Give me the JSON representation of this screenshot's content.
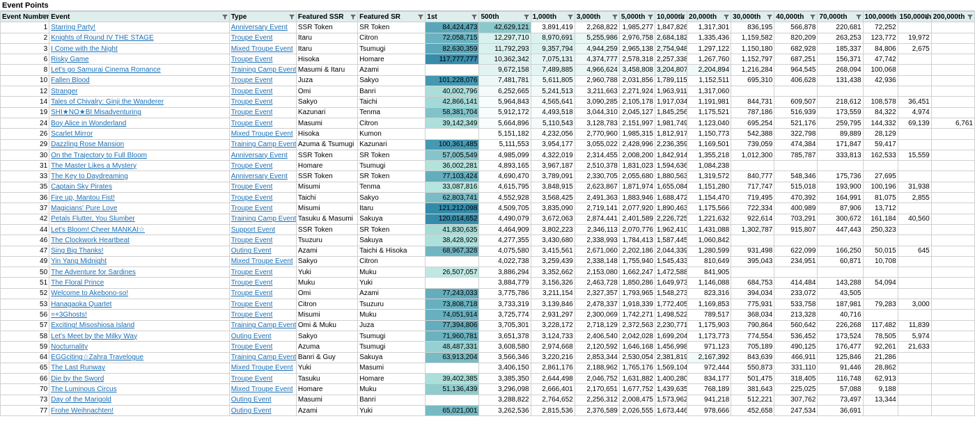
{
  "sheet_title": "Event Points",
  "columns": [
    "Event Number",
    "Event",
    "Type",
    "Featured SSR",
    "Featured SR",
    "1st",
    "500th",
    "1,000th",
    "3,000th",
    "5,000th",
    "10,000th",
    "20,000th",
    "30,000th",
    "40,000th",
    "70,000th",
    "100,000th",
    "150,000th",
    "200,000th"
  ],
  "col_widths": [
    70,
    258,
    96,
    88,
    97,
    77,
    74,
    63,
    64,
    51,
    46,
    63,
    62,
    62,
    65,
    50,
    48,
    62
  ],
  "min_log": 6.8,
  "max_log": 8.1,
  "rows": [
    [
      "1",
      "Starring Party!",
      "Anniversary Event",
      "SSR Token",
      "SR Token",
      "84,424,473",
      "42,629,121",
      "3,891,419",
      "2,268,822",
      "1,985,277",
      "1,847,826",
      "1,317,301",
      "836,195",
      "566,878",
      "220,681",
      "72,252",
      "",
      ""
    ],
    [
      "2",
      "Knights of Round IV THE STAGE",
      "Troupe Event",
      "Itaru",
      "Citron",
      "72,058,715",
      "12,297,710",
      "8,970,691",
      "5,255,986",
      "2,976,758",
      "2,684,182",
      "1,335,436",
      "1,159,582",
      "820,209",
      "263,253",
      "123,772",
      "19,972",
      ""
    ],
    [
      "3",
      "I Come with the Night",
      "Mixed Troupe Event",
      "Itaru",
      "Tsumugi",
      "82,630,359",
      "11,792,293",
      "9,357,794",
      "4,944,259",
      "2,965,138",
      "2,754,948",
      "1,297,122",
      "1,150,180",
      "682,928",
      "185,337",
      "84,806",
      "2,675",
      ""
    ],
    [
      "6",
      "Risky Game",
      "Troupe Event",
      "Hisoka",
      "Homare",
      "117,777,777",
      "10,362,342",
      "7,075,131",
      "4,374,777",
      "2,578,318",
      "2,257,338",
      "1,267,760",
      "1,152,797",
      "687,251",
      "156,371",
      "47,742",
      "",
      ""
    ],
    [
      "8",
      "Let's go Samurai Cinema Romance",
      "Training Camp Event",
      "Masumi & Itaru",
      "Azami",
      "",
      "9,672,158",
      "7,489,885",
      "4,966,624",
      "3,458,808",
      "3,204,807",
      "2,204,894",
      "1,216,284",
      "964,545",
      "268,094",
      "100,068",
      "",
      ""
    ],
    [
      "10",
      "Fallen Blood",
      "Troupe Event",
      "Juza",
      "Sakyo",
      "101,228,076",
      "7,481,781",
      "5,611,805",
      "2,960,788",
      "2,031,856",
      "1,789,115",
      "1,152,511",
      "695,310",
      "406,628",
      "131,438",
      "42,936",
      "",
      ""
    ],
    [
      "12",
      "Stranger",
      "Troupe Event",
      "Omi",
      "Banri",
      "40,002,796",
      "6,252,665",
      "5,241,513",
      "3,211,663",
      "2,271,924",
      "1,963,911",
      "1,317,060",
      "",
      "",
      "",
      "",
      "",
      ""
    ],
    [
      "14",
      "Tales of Chivalry: Ginji the Wanderer",
      "Troupe Event",
      "Sakyo",
      "Taichi",
      "42,866,141",
      "5,964,843",
      "4,565,641",
      "3,090,285",
      "2,105,178",
      "1,917,034",
      "1,191,981",
      "844,731",
      "609,507",
      "218,612",
      "108,578",
      "36,451",
      ""
    ],
    [
      "19",
      "SHI★NO★BI Misadventuring",
      "Troupe Event",
      "Kazunari",
      "Tenma",
      "58,381,704",
      "5,912,172",
      "4,493,518",
      "3,044,310",
      "2,045,127",
      "1,845,256",
      "1,175,521",
      "787,186",
      "516,939",
      "173,559",
      "84,322",
      "4,974",
      ""
    ],
    [
      "24",
      "Boy Alice in Wonderland",
      "Troupe Event",
      "Masumi",
      "Citron",
      "39,142,349",
      "5,664,896",
      "5,110,543",
      "3,128,783",
      "2,151,997",
      "1,981,749",
      "1,123,040",
      "695,254",
      "521,176",
      "259,795",
      "144,332",
      "69,139",
      "6,761"
    ],
    [
      "26",
      "Scarlet Mirror",
      "Mixed Troupe Event",
      "Hisoka",
      "Kumon",
      "",
      "5,151,182",
      "4,232,056",
      "2,770,960",
      "1,985,315",
      "1,812,917",
      "1,150,773",
      "542,388",
      "322,798",
      "89,889",
      "28,129",
      "",
      ""
    ],
    [
      "29",
      "Dazzling Rose Mansion",
      "Training Camp Event",
      "Azuma & Tsumugi",
      "Kazunari",
      "100,361,485",
      "5,111,553",
      "3,954,177",
      "3,055,022",
      "2,428,996",
      "2,236,359",
      "1,169,501",
      "739,059",
      "474,384",
      "171,847",
      "59,417",
      "",
      ""
    ],
    [
      "30",
      "On the Trajectory to Full Bloom",
      "Anniversary Event",
      "SSR Token",
      "SR Token",
      "57,005,549",
      "4,985,099",
      "4,322,019",
      "2,314,455",
      "2,008,200",
      "1,842,914",
      "1,355,218",
      "1,012,300",
      "785,787",
      "333,813",
      "162,533",
      "15,559",
      ""
    ],
    [
      "31",
      "The Master Likes a Mystery",
      "Troupe Event",
      "Homare",
      "Tsumugi",
      "36,002,281",
      "4,893,165",
      "3,967,187",
      "2,510,378",
      "1,831,023",
      "1,594,636",
      "1,084,238",
      "",
      "",
      "",
      "",
      "",
      ""
    ],
    [
      "33",
      "The Key to Daydreaming",
      "Anniversary Event",
      "SSR Token",
      "SR Token",
      "77,103,424",
      "4,690,470",
      "3,789,091",
      "2,330,705",
      "2,055,680",
      "1,880,563",
      "1,319,572",
      "840,777",
      "548,346",
      "175,736",
      "27,695",
      "",
      ""
    ],
    [
      "35",
      "Captain Sky Pirates",
      "Troupe Event",
      "Misumi",
      "Tenma",
      "33,087,816",
      "4,615,795",
      "3,848,915",
      "2,623,867",
      "1,871,974",
      "1,655,084",
      "1,151,280",
      "717,747",
      "515,018",
      "193,900",
      "100,196",
      "31,938",
      ""
    ],
    [
      "36",
      "Fire up, Mantou Fist!",
      "Troupe Event",
      "Taichi",
      "Sakyo",
      "62,803,741",
      "4,552,928",
      "3,568,425",
      "2,491,363",
      "1,883,946",
      "1,688,472",
      "1,154,470",
      "719,495",
      "470,392",
      "164,991",
      "81,075",
      "2,855",
      ""
    ],
    [
      "37",
      "Magicians' Pure Love",
      "Troupe Event",
      "Misumi",
      "Itaru",
      "121,212,098",
      "4,509,705",
      "3,835,090",
      "2,719,141",
      "2,077,920",
      "1,890,463",
      "1,175,566",
      "722,334",
      "400,989",
      "87,906",
      "13,712",
      "",
      ""
    ],
    [
      "42",
      "Petals Flutter, You Slumber",
      "Training Camp Event",
      "Tasuku & Masumi",
      "Sakuya",
      "120,014,652",
      "4,490,079",
      "3,672,063",
      "2,874,441",
      "2,401,589",
      "2,226,725",
      "1,221,632",
      "922,614",
      "703,291",
      "300,672",
      "161,184",
      "40,560",
      ""
    ],
    [
      "44",
      "Let's Bloom! Cheer MANKAI☆",
      "Support Event",
      "SSR Token",
      "SR Token",
      "41,830,635",
      "4,464,909",
      "3,802,223",
      "2,346,113",
      "2,070,776",
      "1,962,410",
      "1,431,088",
      "1,302,787",
      "915,807",
      "447,443",
      "250,323",
      "",
      ""
    ],
    [
      "46",
      "The Clockwork Heartbeat",
      "Troupe Event",
      "Tsuzuru",
      "Sakuya",
      "38,428,929",
      "4,277,355",
      "3,430,680",
      "2,338,993",
      "1,784,413",
      "1,587,445",
      "1,060,842",
      "",
      "",
      "",
      "",
      "",
      ""
    ],
    [
      "47",
      "Sing Big Thanks!",
      "Outing Event",
      "Azami",
      "Taichi & Hisoka",
      "68,967,328",
      "4,075,580",
      "3,415,561",
      "2,671,060",
      "2,202,186",
      "2,044,339",
      "1,280,599",
      "931,498",
      "622,099",
      "166,250",
      "50,015",
      "645",
      ""
    ],
    [
      "49",
      "Yin Yang Midnight",
      "Mixed Troupe Event",
      "Sakyo",
      "Citron",
      "",
      "4,022,738",
      "3,259,439",
      "2,338,148",
      "1,755,940",
      "1,545,433",
      "810,649",
      "395,043",
      "234,951",
      "60,871",
      "10,708",
      "",
      ""
    ],
    [
      "50",
      "The Adventure for Sardines",
      "Troupe Event",
      "Yuki",
      "Muku",
      "26,507,057",
      "3,886,294",
      "3,352,662",
      "2,153,080",
      "1,662,247",
      "1,472,588",
      "841,905",
      "",
      "",
      "",
      "",
      "",
      ""
    ],
    [
      "51",
      "The Floral Prince",
      "Troupe Event",
      "Muku",
      "Yuki",
      "",
      "3,884,779",
      "3,156,326",
      "2,463,728",
      "1,850,286",
      "1,649,973",
      "1,146,088",
      "684,753",
      "414,484",
      "143,288",
      "54,094",
      "",
      ""
    ],
    [
      "52",
      "Welcome to Akebono-so!",
      "Troupe Event",
      "Omi",
      "Azami",
      "77,243,033",
      "3,775,786",
      "3,211,154",
      "2,327,357",
      "1,793,965",
      "1,548,273",
      "823,316",
      "394,034",
      "233,072",
      "43,505",
      "",
      "",
      ""
    ],
    [
      "53",
      "Hanagaoka Quartet",
      "Troupe Event",
      "Citron",
      "Tsuzuru",
      "73,808,718",
      "3,733,319",
      "3,139,846",
      "2,478,337",
      "1,918,339",
      "1,772,405",
      "1,169,853",
      "775,931",
      "533,758",
      "187,981",
      "79,283",
      "3,000",
      ""
    ],
    [
      "56",
      "=+3Ghosts!",
      "Troupe Event",
      "Misumi",
      "Muku",
      "74,051,914",
      "3,725,774",
      "2,931,297",
      "2,300,069",
      "1,742,271",
      "1,498,522",
      "789,517",
      "368,034",
      "213,328",
      "40,716",
      "",
      "",
      ""
    ],
    [
      "57",
      "Exciting! Misoshiosa Island",
      "Training Camp Event",
      "Omi & Muku",
      "Juza",
      "77,394,806",
      "3,705,301",
      "3,228,172",
      "2,718,129",
      "2,372,563",
      "2,230,771",
      "1,175,903",
      "790,864",
      "560,642",
      "226,268",
      "117,482",
      "11,839",
      ""
    ],
    [
      "58",
      "Let's Meet by the Milky Way",
      "Outing Event",
      "Sakyo",
      "Tsumugi",
      "71,960,781",
      "3,651,378",
      "3,124,733",
      "2,406,540",
      "2,042,028",
      "1,699,204",
      "1,173,773",
      "774,554",
      "536,452",
      "173,524",
      "78,505",
      "5,974",
      ""
    ],
    [
      "59",
      "Nocturnality",
      "Troupe Event",
      "Azuma",
      "Tsumugi",
      "48,487,331",
      "3,608,580",
      "2,974,668",
      "2,120,592",
      "1,646,168",
      "1,456,998",
      "971,123",
      "705,189",
      "490,125",
      "176,477",
      "92,261",
      "21,633",
      ""
    ],
    [
      "64",
      "EGGciting☆Zahra Travelogue",
      "Training Camp Event",
      "Banri & Guy",
      "Sakuya",
      "63,913,204",
      "3,566,346",
      "3,220,216",
      "2,853,344",
      "2,530,054",
      "2,381,819",
      "2,167,392",
      "843,639",
      "466,911",
      "125,846",
      "21,286",
      "",
      ""
    ],
    [
      "65",
      "The Last Runway",
      "Mixed Troupe Event",
      "Yuki",
      "Masumi",
      "",
      "3,406,150",
      "2,861,176",
      "2,188,962",
      "1,765,176",
      "1,569,104",
      "972,444",
      "550,873",
      "331,110",
      "91,446",
      "28,862",
      "",
      ""
    ],
    [
      "66",
      "Die by the Sword",
      "Troupe Event",
      "Tasuku",
      "Homare",
      "39,402,385",
      "3,385,350",
      "2,644,498",
      "2,046,752",
      "1,631,882",
      "1,400,280",
      "834,177",
      "501,475",
      "318,405",
      "116,748",
      "62,913",
      "",
      ""
    ],
    [
      "70",
      "The Luminous Circus",
      "Mixed Troupe Event",
      "Homare",
      "Muku",
      "51,136,439",
      "3,296,098",
      "2,666,401",
      "2,170,651",
      "1,677,752",
      "1,439,635",
      "768,189",
      "381,643",
      "225,025",
      "57,088",
      "9,188",
      "",
      ""
    ],
    [
      "73",
      "Day of the Marigold",
      "Outing Event",
      "Masumi",
      "Banri",
      "",
      "3,288,822",
      "2,764,652",
      "2,256,312",
      "2,008,475",
      "1,573,962",
      "941,218",
      "512,221",
      "307,762",
      "73,497",
      "13,344",
      "",
      ""
    ],
    [
      "77",
      "Frohe Weihnachten!",
      "Outing Event",
      "Azami",
      "Yuki",
      "65,021,001",
      "3,262,536",
      "2,815,536",
      "2,376,589",
      "2,026,555",
      "1,673,446",
      "978,666",
      "452,658",
      "247,534",
      "36,691",
      "",
      "",
      ""
    ]
  ]
}
